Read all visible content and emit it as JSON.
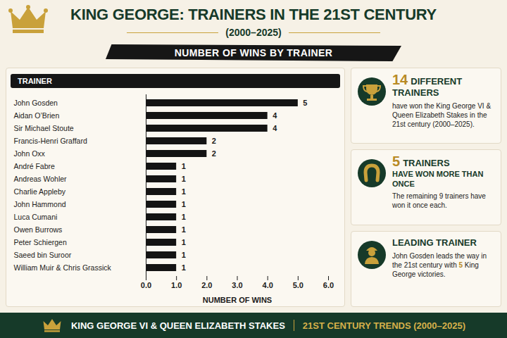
{
  "header": {
    "title": "KING GEORGE: TRAINERS IN THE 21ST CENTURY",
    "subtitle": "(2000–2025)"
  },
  "chart_data": {
    "type": "bar",
    "orientation": "horizontal",
    "title": "NUMBER OF WINS BY TRAINER",
    "ylabel": "TRAINER",
    "xlabel": "NUMBER OF WINS",
    "categories": [
      "John Gosden",
      "Aidan O’Brien",
      "Sir Michael Stoute",
      "Francis-Henri Graffard",
      "John Oxx",
      "André Fabre",
      "Andreas Wohler",
      "Charlie Appleby",
      "John Hammond",
      "Luca Cumani",
      "Owen Burrows",
      "Peter Schiergen",
      "Saeed bin Suroor",
      "William Muir & Chris Grassick"
    ],
    "values": [
      5,
      4,
      4,
      2,
      2,
      1,
      1,
      1,
      1,
      1,
      1,
      1,
      1,
      1
    ],
    "color": "#141414",
    "xlim": [
      0,
      6
    ],
    "xticks": [
      0,
      1,
      2,
      3,
      4,
      5,
      6
    ],
    "grid": false,
    "data_labels": true
  },
  "panels": [
    {
      "number": "14",
      "heading": "DIFFERENT TRAINERS",
      "text": "have won the King George VI & Queen Elizabeth Stakes in the 21st century (2000–2025)."
    },
    {
      "number": "5",
      "heading": "TRAINERS",
      "subheading": "HAVE WON MORE THAN ONCE",
      "text": "The remaining 9 trainers have won it once each."
    },
    {
      "heading": "LEADING TRAINER",
      "text": [
        "John Gosden leads the way in the 21st century with ",
        "5",
        " King George victories."
      ]
    }
  ],
  "footer": {
    "left": "KING GEORGE VI & QUEEN ELIZABETH STAKES",
    "right": "21ST CENTURY TRENDS (2000–2025)"
  }
}
